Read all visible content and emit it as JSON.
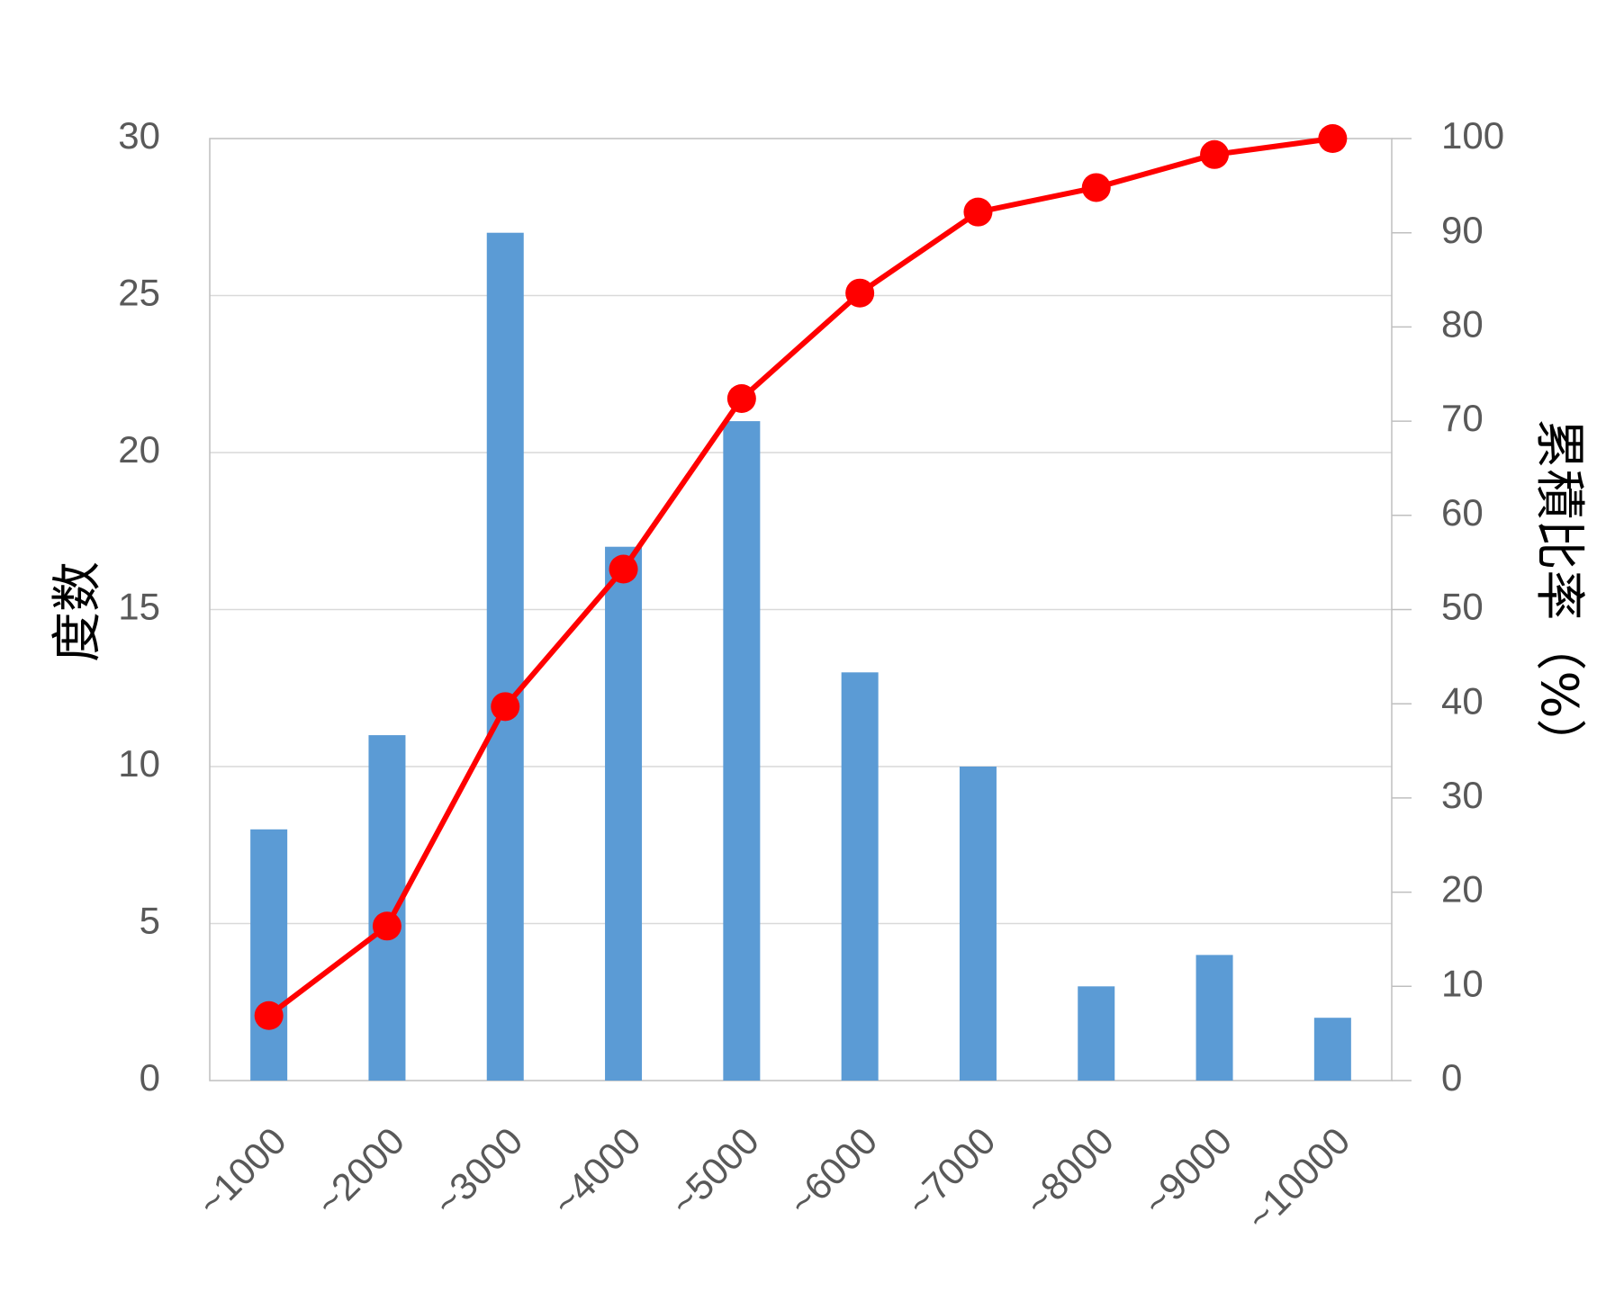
{
  "chart_data": {
    "type": "bar",
    "categories": [
      "~1000",
      "~2000",
      "~3000",
      "~4000",
      "~5000",
      "~6000",
      "~7000",
      "~8000",
      "~9000",
      "~10000"
    ],
    "series": [
      {
        "type": "bar",
        "axis": "left",
        "color": "#5b9bd5",
        "values": [
          8,
          11,
          27,
          17,
          21,
          13,
          10,
          3,
          4,
          2
        ]
      },
      {
        "type": "line",
        "axis": "right",
        "color": "#ff0000",
        "values": [
          6.9,
          16.4,
          39.7,
          54.3,
          72.4,
          83.6,
          92.2,
          94.8,
          98.3,
          100
        ]
      }
    ],
    "ylabel": "度数",
    "y2label": "累積比率（%）",
    "ylim": [
      0,
      30
    ],
    "yticks": [
      "0",
      "5",
      "10",
      "15",
      "20",
      "25",
      "30"
    ],
    "y2lim": [
      0,
      100
    ],
    "y2ticks": [
      "0",
      "10",
      "20",
      "30",
      "40",
      "50",
      "60",
      "70",
      "80",
      "90",
      "100"
    ],
    "grid": true,
    "legend": "none"
  }
}
